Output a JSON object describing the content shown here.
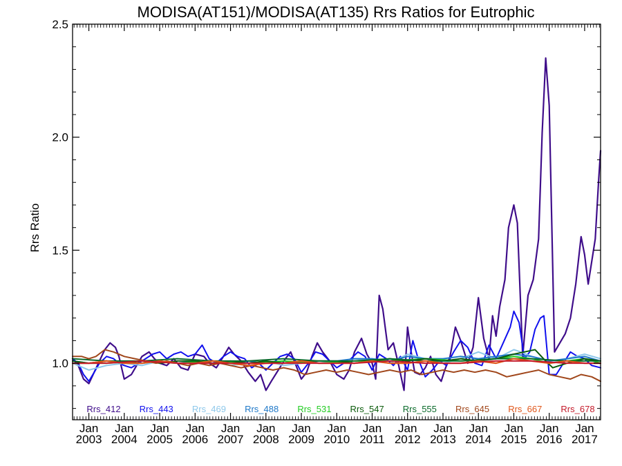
{
  "chart_data": {
    "type": "line",
    "title": "MODISA(AT151)/MODISA(AT135)  Rrs Ratios for Eutrophic",
    "ylabel": "Rrs Ratio",
    "xlabel": "",
    "ylim": [
      0.75,
      2.5
    ],
    "xlim": [
      2002.54,
      2017.45
    ],
    "y_ticks": [
      1.0,
      1.5,
      2.0,
      2.5
    ],
    "y_tick_labels": [
      "1.0",
      "1.5",
      "2.0",
      "2.5"
    ],
    "x_ticks": [
      {
        "x": 2003.0,
        "line1": "Jan",
        "line2": "2003"
      },
      {
        "x": 2004.0,
        "line1": "Jan",
        "line2": "2004"
      },
      {
        "x": 2005.0,
        "line1": "Jan",
        "line2": "2005"
      },
      {
        "x": 2006.0,
        "line1": "Jan",
        "line2": "2006"
      },
      {
        "x": 2007.0,
        "line1": "Jan",
        "line2": "2007"
      },
      {
        "x": 2008.0,
        "line1": "Jan",
        "line2": "2008"
      },
      {
        "x": 2009.0,
        "line1": "Jan",
        "line2": "2009"
      },
      {
        "x": 2010.0,
        "line1": "Jan",
        "line2": "2010"
      },
      {
        "x": 2011.0,
        "line1": "Jan",
        "line2": "2011"
      },
      {
        "x": 2012.0,
        "line1": "Jan",
        "line2": "2012"
      },
      {
        "x": 2013.0,
        "line1": "Jan",
        "line2": "2013"
      },
      {
        "x": 2014.0,
        "line1": "Jan",
        "line2": "2014"
      },
      {
        "x": 2015.0,
        "line1": "Jan",
        "line2": "2015"
      },
      {
        "x": 2016.0,
        "line1": "Jan",
        "line2": "2016"
      },
      {
        "x": 2017.0,
        "line1": "Jan",
        "line2": "2017"
      }
    ],
    "grid": false,
    "legend": "bottom, inside plot",
    "series": [
      {
        "name": "Rrs_412",
        "color": "#3f0d8a",
        "width": 2.2,
        "x": [
          2002.54,
          2002.7,
          2002.85,
          2003.0,
          2003.15,
          2003.3,
          2003.45,
          2003.6,
          2003.75,
          2003.85,
          2004.0,
          2004.2,
          2004.35,
          2004.5,
          2004.7,
          2004.85,
          2005.0,
          2005.2,
          2005.4,
          2005.6,
          2005.8,
          2006.0,
          2006.25,
          2006.4,
          2006.6,
          2006.8,
          2006.95,
          2007.1,
          2007.3,
          2007.5,
          2007.7,
          2007.85,
          2008.0,
          2008.15,
          2008.35,
          2008.55,
          2008.7,
          2008.85,
          2009.0,
          2009.15,
          2009.3,
          2009.45,
          2009.6,
          2009.8,
          2010.0,
          2010.2,
          2010.35,
          2010.5,
          2010.7,
          2010.85,
          2011.0,
          2011.1,
          2011.2,
          2011.3,
          2011.45,
          2011.6,
          2011.75,
          2011.9,
          2012.0,
          2012.1,
          2012.2,
          2012.35,
          2012.5,
          2012.65,
          2012.8,
          2012.95,
          2013.05,
          2013.2,
          2013.35,
          2013.5,
          2013.7,
          2013.85,
          2014.0,
          2014.15,
          2014.3,
          2014.4,
          2014.5,
          2014.6,
          2014.75,
          2014.85,
          2015.0,
          2015.1,
          2015.25,
          2015.4,
          2015.55,
          2015.7,
          2015.8,
          2015.9,
          2016.0,
          2016.15,
          2016.3,
          2016.45,
          2016.6,
          2016.75,
          2016.9,
          2017.0,
          2017.1,
          2017.2,
          2017.3,
          2017.4,
          2017.45
        ],
        "y": [
          1.02,
          0.99,
          0.93,
          0.91,
          0.96,
          1.01,
          1.06,
          1.09,
          1.07,
          1.03,
          0.93,
          0.95,
          0.99,
          1.03,
          1.05,
          1.02,
          1.0,
          0.99,
          1.02,
          0.98,
          0.97,
          1.04,
          1.03,
          1.0,
          0.98,
          1.03,
          1.07,
          1.04,
          1.01,
          0.96,
          0.92,
          0.95,
          0.88,
          0.92,
          0.97,
          1.02,
          1.05,
          0.99,
          0.93,
          0.96,
          1.03,
          1.09,
          1.05,
          1.01,
          0.95,
          0.93,
          0.97,
          1.05,
          1.11,
          1.04,
          1.0,
          0.93,
          1.3,
          1.24,
          1.06,
          1.09,
          0.99,
          0.88,
          1.16,
          1.05,
          0.96,
          0.95,
          0.98,
          1.03,
          0.95,
          0.92,
          0.97,
          1.03,
          1.16,
          1.1,
          1.0,
          1.07,
          1.29,
          1.11,
          1.02,
          1.21,
          1.12,
          1.25,
          1.37,
          1.6,
          1.7,
          1.62,
          1.03,
          1.3,
          1.37,
          1.55,
          2.02,
          2.35,
          2.14,
          1.05,
          1.09,
          1.13,
          1.2,
          1.35,
          1.56,
          1.48,
          1.35,
          1.45,
          1.55,
          1.82,
          1.94
        ]
      },
      {
        "name": "Rrs_443",
        "color": "#1010ee",
        "width": 2.0,
        "x": [
          2002.54,
          2002.7,
          2002.85,
          2003.0,
          2003.15,
          2003.3,
          2003.5,
          2003.7,
          2003.85,
          2004.0,
          2004.2,
          2004.4,
          2004.6,
          2004.8,
          2005.0,
          2005.2,
          2005.4,
          2005.6,
          2005.8,
          2006.0,
          2006.2,
          2006.4,
          2006.6,
          2006.8,
          2007.0,
          2007.2,
          2007.4,
          2007.6,
          2007.8,
          2008.0,
          2008.2,
          2008.4,
          2008.6,
          2008.8,
          2009.0,
          2009.2,
          2009.4,
          2009.6,
          2009.8,
          2010.0,
          2010.2,
          2010.4,
          2010.6,
          2010.8,
          2011.0,
          2011.2,
          2011.4,
          2011.6,
          2011.8,
          2012.0,
          2012.15,
          2012.3,
          2012.5,
          2012.7,
          2012.9,
          2013.1,
          2013.3,
          2013.5,
          2013.7,
          2013.9,
          2014.1,
          2014.3,
          2014.5,
          2014.7,
          2014.9,
          2015.0,
          2015.15,
          2015.3,
          2015.45,
          2015.6,
          2015.75,
          2015.85,
          2016.0,
          2016.2,
          2016.4,
          2016.6,
          2016.8,
          2017.0,
          2017.2,
          2017.45
        ],
        "y": [
          1.02,
          1.0,
          0.95,
          0.92,
          0.96,
          1.0,
          1.03,
          1.02,
          1.0,
          0.99,
          0.98,
          1.0,
          1.02,
          1.04,
          1.05,
          1.02,
          1.04,
          1.05,
          1.03,
          1.04,
          1.08,
          1.02,
          1.0,
          1.03,
          1.05,
          1.03,
          1.02,
          0.98,
          1.0,
          0.97,
          1.0,
          1.03,
          1.04,
          1.02,
          0.96,
          1.0,
          1.05,
          1.04,
          1.01,
          0.98,
          1.0,
          1.02,
          1.05,
          1.03,
          0.97,
          1.04,
          1.02,
          0.99,
          1.03,
          0.97,
          1.1,
          1.02,
          0.94,
          0.97,
          1.01,
          0.99,
          1.05,
          1.1,
          1.07,
          1.0,
          0.99,
          1.08,
          1.02,
          1.09,
          1.16,
          1.23,
          1.18,
          1.02,
          1.05,
          1.15,
          1.2,
          1.21,
          0.95,
          0.95,
          1.0,
          1.05,
          1.03,
          1.02,
          0.99,
          0.98
        ]
      },
      {
        "name": "Rrs_469",
        "color": "#8ec8ea",
        "width": 2.0,
        "x": [
          2002.54,
          2003.0,
          2003.5,
          2004.0,
          2004.5,
          2005.0,
          2005.5,
          2006.0,
          2006.5,
          2007.0,
          2007.5,
          2008.0,
          2008.5,
          2009.0,
          2009.5,
          2010.0,
          2010.5,
          2011.0,
          2011.5,
          2012.0,
          2012.5,
          2013.0,
          2013.5,
          2014.0,
          2014.5,
          2015.0,
          2015.2,
          2015.5,
          2015.8,
          2016.0,
          2016.5,
          2017.0,
          2017.45
        ],
        "y": [
          1.0,
          0.97,
          0.99,
          1.0,
          0.99,
          1.01,
          1.0,
          1.0,
          1.01,
          0.99,
          1.0,
          1.01,
          0.99,
          1.0,
          1.01,
          1.0,
          1.02,
          1.01,
          1.0,
          1.04,
          1.02,
          1.0,
          1.02,
          1.05,
          1.02,
          1.06,
          1.05,
          1.03,
          1.02,
          1.0,
          1.02,
          1.04,
          1.02
        ]
      },
      {
        "name": "Rrs_488",
        "color": "#1e78c8",
        "width": 2.0,
        "x": [
          2002.54,
          2003.0,
          2003.5,
          2004.0,
          2004.5,
          2005.0,
          2005.5,
          2006.0,
          2006.5,
          2007.0,
          2007.5,
          2008.0,
          2008.5,
          2009.0,
          2009.5,
          2010.0,
          2010.5,
          2011.0,
          2011.5,
          2012.0,
          2012.5,
          2013.0,
          2013.5,
          2014.0,
          2014.5,
          2015.0,
          2015.5,
          2016.0,
          2016.5,
          2017.0,
          2017.45
        ],
        "y": [
          1.01,
          1.0,
          1.01,
          1.0,
          1.0,
          1.01,
          1.0,
          1.01,
          1.0,
          1.0,
          1.01,
          1.0,
          1.01,
          1.0,
          1.01,
          1.01,
          1.02,
          1.02,
          1.01,
          1.03,
          1.02,
          1.02,
          1.03,
          1.02,
          1.03,
          1.04,
          1.03,
          1.01,
          1.02,
          1.03,
          1.01
        ]
      },
      {
        "name": "Rrs_531",
        "color": "#22cc22",
        "width": 2.0,
        "x": [
          2002.54,
          2003.5,
          2004.5,
          2005.5,
          2006.5,
          2007.5,
          2008.5,
          2009.5,
          2010.5,
          2011.5,
          2012.5,
          2013.5,
          2014.5,
          2015.0,
          2015.5,
          2016.0,
          2016.5,
          2017.0,
          2017.45
        ],
        "y": [
          1.0,
          1.0,
          1.01,
          1.0,
          1.01,
          1.0,
          1.01,
          1.0,
          1.01,
          1.01,
          1.02,
          1.01,
          1.02,
          1.03,
          1.02,
          1.0,
          1.01,
          1.02,
          1.0
        ]
      },
      {
        "name": "Rrs_547",
        "color": "#0a5a0a",
        "width": 2.0,
        "x": [
          2002.54,
          2003.0,
          2003.5,
          2004.0,
          2004.5,
          2005.0,
          2005.5,
          2006.0,
          2006.5,
          2007.0,
          2007.5,
          2008.0,
          2008.5,
          2009.0,
          2009.5,
          2010.0,
          2010.5,
          2011.0,
          2011.5,
          2012.0,
          2012.5,
          2013.0,
          2013.5,
          2014.0,
          2014.5,
          2015.0,
          2015.3,
          2015.6,
          2015.9,
          2016.1,
          2016.5,
          2017.0,
          2017.45
        ],
        "y": [
          1.01,
          1.0,
          1.01,
          1.0,
          1.01,
          1.0,
          1.01,
          1.01,
          1.0,
          1.01,
          1.0,
          1.01,
          1.0,
          1.01,
          1.01,
          1.01,
          1.0,
          1.01,
          1.02,
          1.01,
          1.02,
          1.01,
          1.02,
          1.01,
          1.02,
          1.04,
          1.05,
          1.06,
          1.01,
          0.98,
          1.0,
          1.02,
          1.01
        ]
      },
      {
        "name": "Rrs_555",
        "color": "#0a6a2a",
        "width": 2.0,
        "x": [
          2002.54,
          2003.5,
          2004.5,
          2005.5,
          2006.5,
          2007.5,
          2008.5,
          2009.5,
          2010.5,
          2011.5,
          2012.5,
          2013.5,
          2014.5,
          2015.5,
          2016.5,
          2017.45
        ],
        "y": [
          1.02,
          1.01,
          1.01,
          1.02,
          1.01,
          1.01,
          1.02,
          1.01,
          1.01,
          1.02,
          1.01,
          1.01,
          1.02,
          1.02,
          1.01,
          1.01
        ]
      },
      {
        "name": "Rrs_645",
        "color": "#a0461a",
        "width": 2.0,
        "x": [
          2002.54,
          2002.8,
          2003.0,
          2003.2,
          2003.45,
          2003.7,
          2004.0,
          2004.3,
          2004.6,
          2004.9,
          2005.2,
          2005.5,
          2005.8,
          2006.1,
          2006.4,
          2006.7,
          2007.0,
          2007.3,
          2007.6,
          2007.9,
          2008.2,
          2008.5,
          2008.8,
          2009.1,
          2009.4,
          2009.7,
          2010.0,
          2010.3,
          2010.6,
          2010.9,
          2011.2,
          2011.5,
          2011.8,
          2012.1,
          2012.4,
          2012.7,
          2013.0,
          2013.3,
          2013.6,
          2013.9,
          2014.2,
          2014.5,
          2014.8,
          2015.1,
          2015.4,
          2015.7,
          2016.0,
          2016.3,
          2016.6,
          2016.9,
          2017.2,
          2017.45
        ],
        "y": [
          1.03,
          1.03,
          1.02,
          1.03,
          1.06,
          1.05,
          1.03,
          1.02,
          1.01,
          1.0,
          1.01,
          1.0,
          0.99,
          1.0,
          0.99,
          1.0,
          0.99,
          0.98,
          0.99,
          0.98,
          0.97,
          0.98,
          0.97,
          0.95,
          0.96,
          0.97,
          0.96,
          0.97,
          0.96,
          0.95,
          0.96,
          0.97,
          0.96,
          0.97,
          0.95,
          0.96,
          0.97,
          0.96,
          0.97,
          0.96,
          0.97,
          0.96,
          0.94,
          0.95,
          0.96,
          0.97,
          0.95,
          0.94,
          0.93,
          0.95,
          0.94,
          0.92
        ]
      },
      {
        "name": "Rrs_667",
        "color": "#e0561a",
        "width": 2.2,
        "x": [
          2002.54,
          2003.0,
          2003.5,
          2004.0,
          2004.5,
          2005.0,
          2005.5,
          2006.0,
          2006.5,
          2007.0,
          2007.5,
          2008.0,
          2008.5,
          2009.0,
          2009.5,
          2010.0,
          2010.5,
          2011.0,
          2011.5,
          2012.0,
          2012.5,
          2013.0,
          2013.5,
          2014.0,
          2014.5,
          2015.0,
          2015.5,
          2016.0,
          2016.5,
          2017.0,
          2017.45
        ],
        "y": [
          1.0,
          1.0,
          1.01,
          1.0,
          1.0,
          1.01,
          1.0,
          1.0,
          1.01,
          1.0,
          0.99,
          1.0,
          1.0,
          1.01,
          1.0,
          1.0,
          1.0,
          1.01,
          1.0,
          1.0,
          1.01,
          1.0,
          1.0,
          1.01,
          1.0,
          1.02,
          1.01,
          1.0,
          1.01,
          1.0,
          1.0
        ]
      },
      {
        "name": "Rrs_678",
        "color": "#c41a2a",
        "width": 2.0,
        "x": [
          2002.54,
          2003.5,
          2004.5,
          2005.5,
          2006.5,
          2007.5,
          2008.5,
          2009.5,
          2010.5,
          2011.5,
          2012.5,
          2013.5,
          2014.5,
          2015.5,
          2016.5,
          2017.45
        ],
        "y": [
          1.0,
          1.0,
          1.01,
          1.0,
          1.0,
          1.0,
          1.0,
          1.0,
          1.0,
          1.01,
          1.0,
          1.0,
          1.01,
          1.01,
          1.0,
          1.0
        ]
      }
    ]
  }
}
